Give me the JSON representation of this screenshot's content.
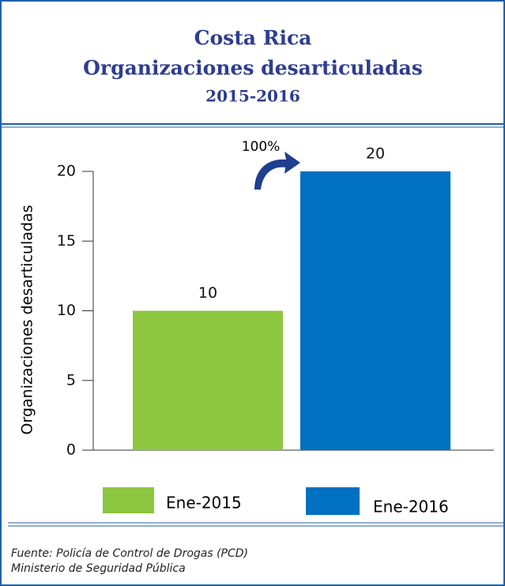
{
  "chart_data": {
    "type": "bar",
    "title": "Costa Rica",
    "subtitle": "Organizaciones desarticuladas",
    "period": "2015-2016",
    "ylabel": "Organizaciones desarticuladas",
    "categories": [
      "Ene-2015",
      "Ene-2016"
    ],
    "values": [
      10,
      20
    ],
    "colors": [
      "#8dc63f",
      "#0070c0"
    ],
    "annotation": "100%",
    "ylim": [
      0,
      20
    ],
    "yticks": [
      0,
      5,
      10,
      15,
      20
    ],
    "legend": "bottom",
    "source": [
      "Fuente: Policía de Control de Drogas (PCD)",
      "Ministerio de Seguridad Pública"
    ]
  }
}
